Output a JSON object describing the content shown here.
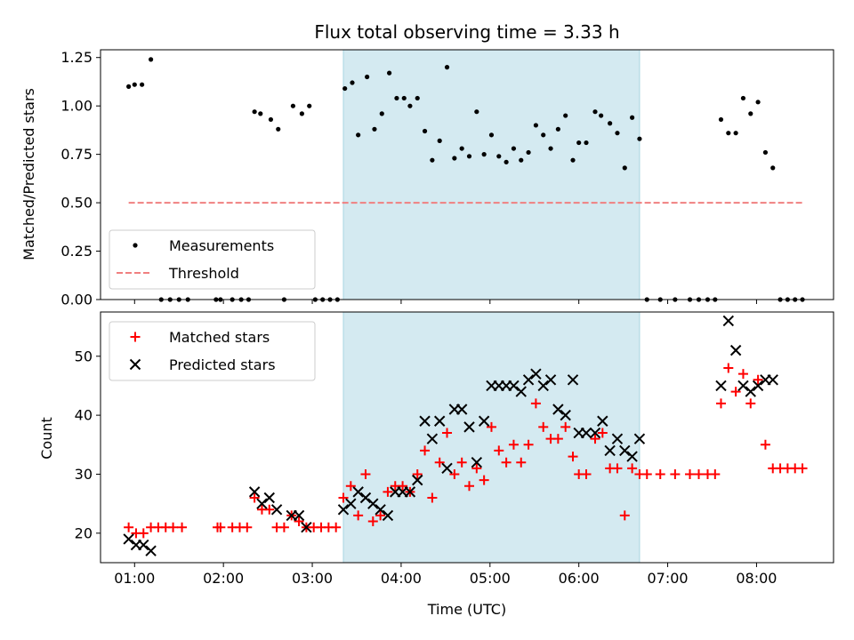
{
  "chart_data": [
    {
      "type": "scatter",
      "title": "Flux total observing time = 3.33 h",
      "xlabel": "",
      "ylabel": "Matched/Predicted stars",
      "ylim": [
        0,
        1.29
      ],
      "yticks": [
        "0.00",
        "0.25",
        "0.50",
        "0.75",
        "1.00",
        "1.25"
      ],
      "ytick_values": [
        0,
        0.25,
        0.5,
        0.75,
        1.0,
        1.25
      ],
      "xrange_hours": [
        "00:37",
        "08:52"
      ],
      "shaded_span": [
        "03:21",
        "06:41"
      ],
      "shade_color": "#d4eaf1",
      "legend_position": "lower-left",
      "series": [
        {
          "name": "Measurements",
          "marker": "dot",
          "color": "#000000",
          "points": [
            [
              "00:56",
              1.1
            ],
            [
              "01:00",
              1.11
            ],
            [
              "01:05",
              1.11
            ],
            [
              "01:11",
              1.24
            ],
            [
              "01:18",
              0
            ],
            [
              "01:24",
              0
            ],
            [
              "01:30",
              0
            ],
            [
              "01:36",
              0
            ],
            [
              "01:55",
              0
            ],
            [
              "01:58",
              0
            ],
            [
              "02:06",
              0
            ],
            [
              "02:12",
              0
            ],
            [
              "02:17",
              0
            ],
            [
              "02:21",
              0.97
            ],
            [
              "02:25",
              0.96
            ],
            [
              "02:32",
              0.93
            ],
            [
              "02:37",
              0.88
            ],
            [
              "02:41",
              0
            ],
            [
              "02:47",
              1.0
            ],
            [
              "02:53",
              0.96
            ],
            [
              "02:58",
              1.0
            ],
            [
              "03:02",
              0
            ],
            [
              "03:07",
              0
            ],
            [
              "03:12",
              0
            ],
            [
              "03:17",
              0
            ],
            [
              "03:22",
              1.09
            ],
            [
              "03:27",
              1.12
            ],
            [
              "03:31",
              0.85
            ],
            [
              "03:37",
              1.15
            ],
            [
              "03:42",
              0.88
            ],
            [
              "03:47",
              0.96
            ],
            [
              "03:52",
              1.17
            ],
            [
              "03:57",
              1.04
            ],
            [
              "04:02",
              1.04
            ],
            [
              "04:06",
              1.0
            ],
            [
              "04:11",
              1.04
            ],
            [
              "04:16",
              0.87
            ],
            [
              "04:21",
              0.72
            ],
            [
              "04:26",
              0.82
            ],
            [
              "04:31",
              1.2
            ],
            [
              "04:36",
              0.73
            ],
            [
              "04:41",
              0.78
            ],
            [
              "04:46",
              0.74
            ],
            [
              "04:51",
              0.97
            ],
            [
              "04:56",
              0.75
            ],
            [
              "05:01",
              0.85
            ],
            [
              "05:06",
              0.74
            ],
            [
              "05:11",
              0.71
            ],
            [
              "05:16",
              0.78
            ],
            [
              "05:21",
              0.72
            ],
            [
              "05:26",
              0.76
            ],
            [
              "05:31",
              0.9
            ],
            [
              "05:36",
              0.85
            ],
            [
              "05:41",
              0.78
            ],
            [
              "05:46",
              0.88
            ],
            [
              "05:51",
              0.95
            ],
            [
              "05:56",
              0.72
            ],
            [
              "06:00",
              0.81
            ],
            [
              "06:05",
              0.81
            ],
            [
              "06:11",
              0.97
            ],
            [
              "06:15",
              0.95
            ],
            [
              "06:21",
              0.91
            ],
            [
              "06:26",
              0.86
            ],
            [
              "06:31",
              0.68
            ],
            [
              "06:36",
              0.94
            ],
            [
              "06:41",
              0.83
            ],
            [
              "06:46",
              0
            ],
            [
              "06:55",
              0
            ],
            [
              "07:05",
              0
            ],
            [
              "07:15",
              0
            ],
            [
              "07:21",
              0
            ],
            [
              "07:27",
              0
            ],
            [
              "07:32",
              0
            ],
            [
              "07:36",
              0.93
            ],
            [
              "07:41",
              0.86
            ],
            [
              "07:46",
              0.86
            ],
            [
              "07:51",
              1.04
            ],
            [
              "07:56",
              0.96
            ],
            [
              "08:01",
              1.02
            ],
            [
              "08:06",
              0.76
            ],
            [
              "08:11",
              0.68
            ],
            [
              "08:16",
              0
            ],
            [
              "08:21",
              0
            ],
            [
              "08:26",
              0
            ],
            [
              "08:31",
              0
            ]
          ]
        },
        {
          "name": "Threshold",
          "style": "dashed-line",
          "color": "#f08080",
          "points": [
            [
              "00:56",
              0.5
            ],
            [
              "08:31",
              0.5
            ]
          ]
        }
      ]
    },
    {
      "type": "scatter",
      "xlabel": "Time (UTC)",
      "ylabel": "Count",
      "ylim": [
        15,
        57.5
      ],
      "yticks": [
        "20",
        "30",
        "40",
        "50"
      ],
      "ytick_values": [
        20,
        30,
        40,
        50
      ],
      "xticks": [
        "01:00",
        "02:00",
        "03:00",
        "04:00",
        "05:00",
        "06:00",
        "07:00",
        "08:00"
      ],
      "xrange_hours": [
        "00:37",
        "08:52"
      ],
      "shaded_span": [
        "03:21",
        "06:41"
      ],
      "shade_color": "#d4eaf1",
      "legend_position": "upper-left",
      "series": [
        {
          "name": "Matched stars",
          "marker": "plus",
          "color": "#ff0000",
          "points": [
            [
              "00:56",
              21
            ],
            [
              "01:01",
              20
            ],
            [
              "01:06",
              20
            ],
            [
              "01:11",
              21
            ],
            [
              "01:16",
              21
            ],
            [
              "01:21",
              21
            ],
            [
              "01:26",
              21
            ],
            [
              "01:32",
              21
            ],
            [
              "01:56",
              21
            ],
            [
              "01:58",
              21
            ],
            [
              "02:06",
              21
            ],
            [
              "02:11",
              21
            ],
            [
              "02:16",
              21
            ],
            [
              "02:21",
              26
            ],
            [
              "02:26",
              24
            ],
            [
              "02:31",
              24
            ],
            [
              "02:36",
              21
            ],
            [
              "02:41",
              21
            ],
            [
              "02:46",
              23
            ],
            [
              "02:51",
              22
            ],
            [
              "02:56",
              21
            ],
            [
              "03:01",
              21
            ],
            [
              "03:06",
              21
            ],
            [
              "03:11",
              21
            ],
            [
              "03:16",
              21
            ],
            [
              "03:21",
              26
            ],
            [
              "03:26",
              28
            ],
            [
              "03:31",
              23
            ],
            [
              "03:36",
              30
            ],
            [
              "03:41",
              22
            ],
            [
              "03:46",
              23
            ],
            [
              "03:51",
              27
            ],
            [
              "03:56",
              28
            ],
            [
              "04:01",
              28
            ],
            [
              "04:06",
              27
            ],
            [
              "04:11",
              30
            ],
            [
              "04:16",
              34
            ],
            [
              "04:21",
              26
            ],
            [
              "04:26",
              32
            ],
            [
              "04:31",
              37
            ],
            [
              "04:36",
              30
            ],
            [
              "04:41",
              32
            ],
            [
              "04:46",
              28
            ],
            [
              "04:51",
              31
            ],
            [
              "04:56",
              29
            ],
            [
              "05:01",
              38
            ],
            [
              "05:06",
              34
            ],
            [
              "05:11",
              32
            ],
            [
              "05:16",
              35
            ],
            [
              "05:21",
              32
            ],
            [
              "05:26",
              35
            ],
            [
              "05:31",
              42
            ],
            [
              "05:36",
              38
            ],
            [
              "05:41",
              36
            ],
            [
              "05:46",
              36
            ],
            [
              "05:51",
              38
            ],
            [
              "05:56",
              33
            ],
            [
              "06:00",
              30
            ],
            [
              "06:05",
              30
            ],
            [
              "06:11",
              36
            ],
            [
              "06:16",
              37
            ],
            [
              "06:21",
              31
            ],
            [
              "06:26",
              31
            ],
            [
              "06:31",
              23
            ],
            [
              "06:36",
              31
            ],
            [
              "06:41",
              30
            ],
            [
              "06:46",
              30
            ],
            [
              "06:55",
              30
            ],
            [
              "07:05",
              30
            ],
            [
              "07:15",
              30
            ],
            [
              "07:21",
              30
            ],
            [
              "07:27",
              30
            ],
            [
              "07:32",
              30
            ],
            [
              "07:36",
              42
            ],
            [
              "07:41",
              48
            ],
            [
              "07:46",
              44
            ],
            [
              "07:51",
              47
            ],
            [
              "07:56",
              42
            ],
            [
              "08:01",
              46
            ],
            [
              "08:06",
              35
            ],
            [
              "08:11",
              31
            ],
            [
              "08:16",
              31
            ],
            [
              "08:21",
              31
            ],
            [
              "08:26",
              31
            ],
            [
              "08:31",
              31
            ]
          ]
        },
        {
          "name": "Predicted stars",
          "marker": "x",
          "color": "#000000",
          "points": [
            [
              "00:56",
              19
            ],
            [
              "01:01",
              18
            ],
            [
              "01:06",
              18
            ],
            [
              "01:11",
              17
            ],
            [
              "02:21",
              27
            ],
            [
              "02:26",
              25
            ],
            [
              "02:31",
              26
            ],
            [
              "02:36",
              24
            ],
            [
              "02:46",
              23
            ],
            [
              "02:51",
              23
            ],
            [
              "02:56",
              21
            ],
            [
              "03:21",
              24
            ],
            [
              "03:26",
              25
            ],
            [
              "03:31",
              27
            ],
            [
              "03:36",
              26
            ],
            [
              "03:41",
              25
            ],
            [
              "03:46",
              24
            ],
            [
              "03:51",
              23
            ],
            [
              "03:56",
              27
            ],
            [
              "04:01",
              27
            ],
            [
              "04:06",
              27
            ],
            [
              "04:11",
              29
            ],
            [
              "04:16",
              39
            ],
            [
              "04:21",
              36
            ],
            [
              "04:26",
              39
            ],
            [
              "04:31",
              31
            ],
            [
              "04:36",
              41
            ],
            [
              "04:41",
              41
            ],
            [
              "04:46",
              38
            ],
            [
              "04:51",
              32
            ],
            [
              "04:56",
              39
            ],
            [
              "05:01",
              45
            ],
            [
              "05:06",
              45
            ],
            [
              "05:11",
              45
            ],
            [
              "05:16",
              45
            ],
            [
              "05:21",
              44
            ],
            [
              "05:26",
              46
            ],
            [
              "05:31",
              47
            ],
            [
              "05:36",
              45
            ],
            [
              "05:41",
              46
            ],
            [
              "05:46",
              41
            ],
            [
              "05:51",
              40
            ],
            [
              "05:56",
              46
            ],
            [
              "06:00",
              37
            ],
            [
              "06:05",
              37
            ],
            [
              "06:11",
              37
            ],
            [
              "06:16",
              39
            ],
            [
              "06:21",
              34
            ],
            [
              "06:26",
              36
            ],
            [
              "06:31",
              34
            ],
            [
              "06:36",
              33
            ],
            [
              "06:41",
              36
            ],
            [
              "07:36",
              45
            ],
            [
              "07:41",
              56
            ],
            [
              "07:46",
              51
            ],
            [
              "07:51",
              45
            ],
            [
              "07:56",
              44
            ],
            [
              "08:01",
              45
            ],
            [
              "08:06",
              46
            ],
            [
              "08:11",
              46
            ]
          ]
        }
      ]
    }
  ]
}
